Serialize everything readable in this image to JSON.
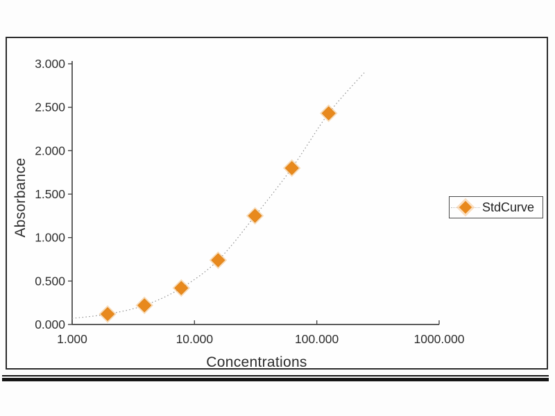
{
  "chart_data": {
    "type": "scatter",
    "title": "",
    "xlabel": "Concentrations",
    "ylabel": "Absorbance",
    "x_scale": "log10",
    "xlim": [
      1,
      1000
    ],
    "ylim": [
      0,
      3
    ],
    "grid": false,
    "legend_position": "right",
    "x_ticks": [
      {
        "value": 1,
        "label": "1.000"
      },
      {
        "value": 10,
        "label": "10.000"
      },
      {
        "value": 100,
        "label": "100.000"
      },
      {
        "value": 1000,
        "label": "1000.000"
      }
    ],
    "y_ticks": [
      {
        "value": 0,
        "label": "0.000"
      },
      {
        "value": 0.5,
        "label": "0.500"
      },
      {
        "value": 1,
        "label": "1.000"
      },
      {
        "value": 1.5,
        "label": "1.500"
      },
      {
        "value": 2,
        "label": "2.000"
      },
      {
        "value": 2.5,
        "label": "2.500"
      },
      {
        "value": 3,
        "label": "3.000"
      }
    ],
    "legend": {
      "label": "StdCurve"
    },
    "series": [
      {
        "name": "StdCurve",
        "marker": "diamond",
        "color": "#e8891d",
        "halo_color": "#f3bc79",
        "points": [
          {
            "x": 1.95,
            "y": 0.12
          },
          {
            "x": 3.9,
            "y": 0.22
          },
          {
            "x": 7.8,
            "y": 0.42
          },
          {
            "x": 15.6,
            "y": 0.74
          },
          {
            "x": 31.25,
            "y": 1.25
          },
          {
            "x": 62.5,
            "y": 1.8
          },
          {
            "x": 125,
            "y": 2.43
          }
        ]
      }
    ],
    "fit_curve": {
      "style": "dotted",
      "color": "#8f8f8f",
      "points": [
        {
          "x": 1.0,
          "y": 0.07
        },
        {
          "x": 1.95,
          "y": 0.12
        },
        {
          "x": 3.9,
          "y": 0.22
        },
        {
          "x": 7.8,
          "y": 0.42
        },
        {
          "x": 15.6,
          "y": 0.74
        },
        {
          "x": 31.25,
          "y": 1.25
        },
        {
          "x": 62.5,
          "y": 1.8
        },
        {
          "x": 125,
          "y": 2.43
        },
        {
          "x": 245,
          "y": 2.9
        }
      ]
    },
    "colors": {
      "marker": "#e8891d",
      "marker_halo": "#f3bc79",
      "curve": "#8f8f8f",
      "axis": "#454545",
      "text": "#2d2d2d"
    }
  }
}
